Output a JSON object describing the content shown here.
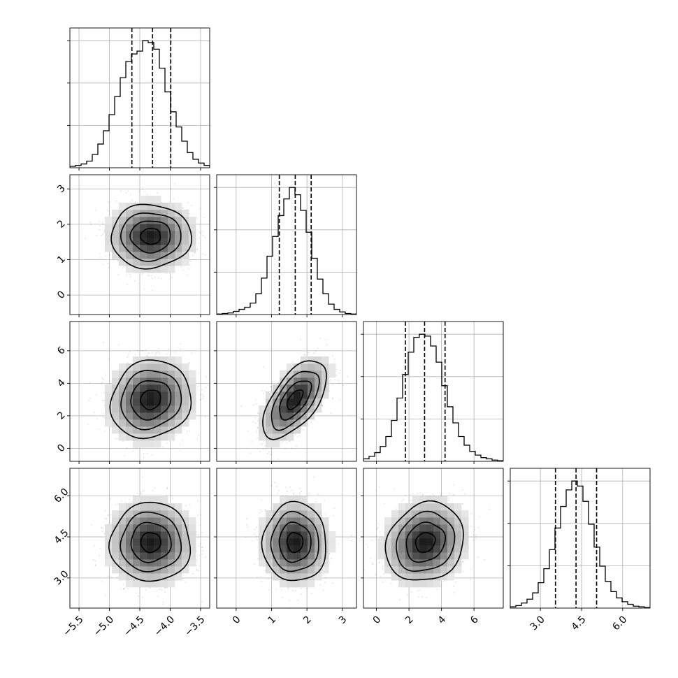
{
  "chart_data": {
    "type": "corner",
    "n_params": 4,
    "params": [
      {
        "range": [
          -5.65,
          -3.35
        ],
        "ticks": [
          -5.5,
          -5.0,
          -4.5,
          -4.0,
          -3.5
        ],
        "tick_labels": [
          "−5.5",
          "−5.0",
          "−4.5",
          "−4.0",
          "−3.5"
        ],
        "mean": -4.32,
        "sd": 0.33,
        "quantiles": [
          -4.63,
          -4.29,
          -3.99
        ],
        "hist_counts": [
          3,
          5,
          8,
          14,
          28,
          50,
          78,
          112,
          150,
          190,
          224,
          240,
          246,
          268,
          264,
          250,
          210,
          160,
          118,
          86,
          56,
          32,
          18,
          10,
          5
        ]
      },
      {
        "range": [
          -0.55,
          3.4
        ],
        "ticks": [
          0,
          1,
          2,
          3
        ],
        "tick_labels": [
          "0",
          "1",
          "2",
          "3"
        ],
        "mean": 1.66,
        "sd": 0.45,
        "quantiles": [
          1.22,
          1.67,
          2.12
        ],
        "hist_counts": [
          1,
          2,
          3,
          6,
          10,
          14,
          22,
          40,
          70,
          112,
          150,
          190,
          222,
          244,
          230,
          200,
          158,
          108,
          68,
          40,
          20,
          10,
          5,
          2,
          1
        ]
      },
      {
        "range": [
          -0.8,
          7.8
        ],
        "ticks": [
          0,
          2,
          4,
          6
        ],
        "tick_labels": [
          "0",
          "2",
          "4",
          "6"
        ],
        "mean": 3.0,
        "sd": 1.2,
        "quantiles": [
          1.78,
          2.96,
          4.22
        ],
        "hist_counts": [
          4,
          8,
          14,
          24,
          40,
          66,
          102,
          140,
          176,
          200,
          205,
          202,
          186,
          160,
          122,
          88,
          62,
          40,
          26,
          16,
          10,
          6,
          4,
          2,
          1
        ]
      },
      {
        "range": [
          1.9,
          7.0
        ],
        "ticks": [
          3.0,
          4.5,
          6.0
        ],
        "tick_labels": [
          "3.0",
          "4.5",
          "6.0"
        ],
        "mean": 4.3,
        "sd": 0.72,
        "quantiles": [
          3.55,
          4.3,
          5.05
        ],
        "hist_counts": [
          2,
          4,
          8,
          14,
          24,
          40,
          62,
          92,
          126,
          160,
          186,
          200,
          192,
          168,
          132,
          96,
          66,
          42,
          26,
          16,
          10,
          6,
          3,
          2,
          1
        ]
      }
    ],
    "correlations": {
      "1,0": 0.0,
      "2,0": 0.1,
      "2,1": 0.6,
      "3,0": 0.0,
      "3,1": 0.0,
      "3,2": 0.15
    },
    "contour_levels_sigma": [
      0.5,
      1.0,
      1.5,
      2.0
    ],
    "grid": true,
    "colors": {
      "line": "#000000",
      "grid": "#b0b0b0",
      "scatter": "#000000",
      "density_max": "#1a1a1a"
    }
  }
}
